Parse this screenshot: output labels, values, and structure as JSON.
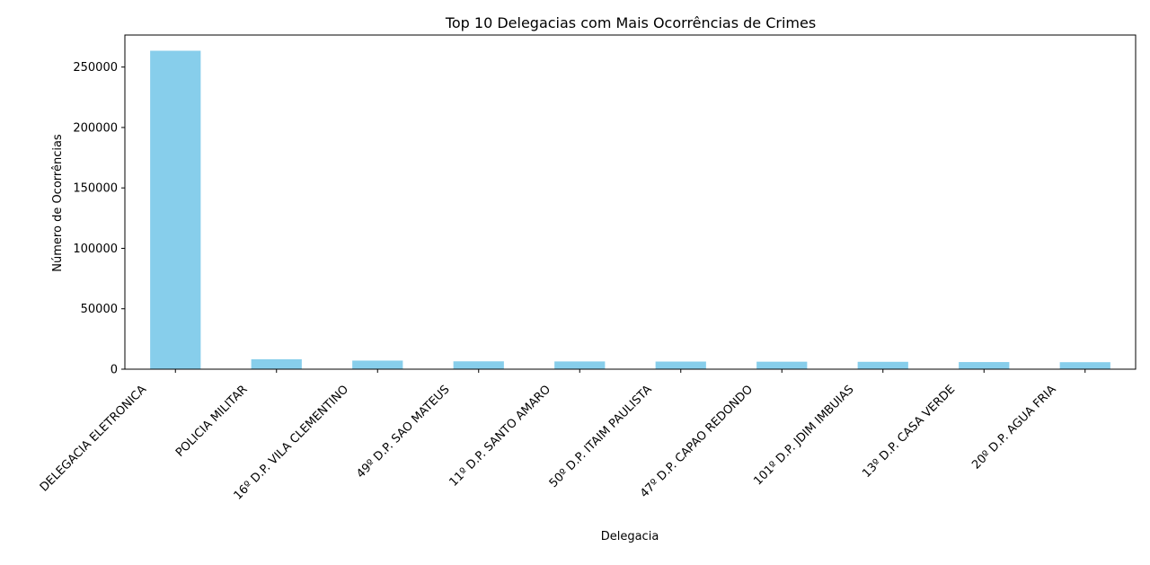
{
  "chart_data": {
    "type": "bar",
    "title": "Top 10 Delegacias com Mais Ocorrências de Crimes",
    "xlabel": "Delegacia",
    "ylabel": "Número de Ocorrências",
    "categories": [
      "DELEGACIA ELETRONICA",
      "POLICIA MILITAR",
      "16º D.P. VILA CLEMENTINO",
      "49º D.P.  SAO MATEUS",
      "11º D.P. SANTO AMARO",
      "50º D.P.  ITAIM PAULISTA",
      "47º D.P.  CAPAO REDONDO",
      "101º D.P. JDIM IMBUIAS",
      "13º D.P. CASA VERDE",
      "20º D.P.  AGUA FRIA"
    ],
    "values": [
      263500,
      8200,
      7100,
      6500,
      6400,
      6300,
      6200,
      6100,
      5900,
      5800
    ],
    "ylim": [
      0,
      276500
    ],
    "yticks": [
      0,
      50000,
      100000,
      150000,
      200000,
      250000
    ],
    "bar_color": "#87ceeb",
    "grid": false,
    "legend": "none"
  }
}
